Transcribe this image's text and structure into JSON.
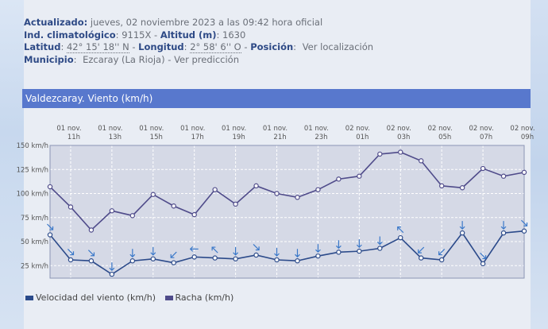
{
  "station": {
    "actualizado_label": "Actualizado:",
    "actualizado_value": "jueves, 02 noviembre 2023 a las 09:42 hora oficial",
    "ind_label": "Ind. climatológico",
    "ind_value": "9115X",
    "altitud_label": "Altitud (m)",
    "altitud_value": "1630",
    "latitud_label": "Latitud",
    "latitud_value": "42° 15' 18'' N",
    "longitud_label": "Longitud",
    "longitud_value": "2° 58' 6'' O",
    "posicion_label": "Posición",
    "posicion_link": "Ver localización",
    "municipio_label": "Municipio",
    "municipio_value": "Ezcaray (La Rioja)",
    "municipio_link": "Ver predicción",
    "sep_dash": "-",
    "sep_colon": ":"
  },
  "panel": {
    "title": "Valdezcaray. Viento (km/h)"
  },
  "legend": {
    "velocidad": "Velocidad del viento (km/h)",
    "racha": "Racha (km/h)"
  },
  "colors": {
    "header_bar": "#5878cd",
    "velocidad": "#2b4a8a",
    "racha": "#4f4b8a",
    "plot_bg": "#d5d9e6",
    "arrow": "#3a78c9"
  },
  "chart_data": {
    "type": "line",
    "title": "Valdezcaray. Viento (km/h)",
    "ylabel": "km/h",
    "ylim": [
      12,
      150
    ],
    "y_ticks": [
      25,
      50,
      75,
      100,
      125,
      150
    ],
    "y_tick_labels": [
      "25 km/h",
      "50 km/h",
      "75 km/h",
      "100 km/h",
      "125 km/h",
      "150 km/h"
    ],
    "x_ticks": [
      {
        "i": 1,
        "line1": "01 nov.",
        "line2": "11h"
      },
      {
        "i": 3,
        "line1": "01 nov.",
        "line2": "13h"
      },
      {
        "i": 5,
        "line1": "01 nov.",
        "line2": "15h"
      },
      {
        "i": 7,
        "line1": "01 nov.",
        "line2": "17h"
      },
      {
        "i": 9,
        "line1": "01 nov.",
        "line2": "19h"
      },
      {
        "i": 11,
        "line1": "01 nov.",
        "line2": "21h"
      },
      {
        "i": 13,
        "line1": "01 nov.",
        "line2": "23h"
      },
      {
        "i": 15,
        "line1": "02 nov.",
        "line2": "01h"
      },
      {
        "i": 17,
        "line1": "02 nov.",
        "line2": "03h"
      },
      {
        "i": 19,
        "line1": "02 nov.",
        "line2": "05h"
      },
      {
        "i": 21,
        "line1": "02 nov.",
        "line2": "07h"
      },
      {
        "i": 23,
        "line1": "02 nov.",
        "line2": "09h"
      }
    ],
    "series": [
      {
        "name": "Velocidad del viento (km/h)",
        "values": [
          57,
          31,
          30,
          16,
          30,
          32,
          28,
          34,
          33,
          32,
          36,
          31,
          30,
          35,
          39,
          40,
          43,
          54,
          33,
          31,
          59,
          27,
          59,
          61
        ]
      },
      {
        "name": "Racha (km/h)",
        "values": [
          107,
          86,
          62,
          82,
          77,
          99,
          87,
          78,
          104,
          89,
          108,
          100,
          96,
          104,
          115,
          118,
          141,
          143,
          134,
          108,
          106,
          126,
          118,
          122
        ]
      }
    ],
    "wind_direction_deg": [
      315,
      315,
      315,
      0,
      0,
      0,
      45,
      90,
      135,
      0,
      315,
      0,
      0,
      0,
      0,
      0,
      0,
      135,
      45,
      45,
      0,
      315,
      0,
      315
    ]
  }
}
